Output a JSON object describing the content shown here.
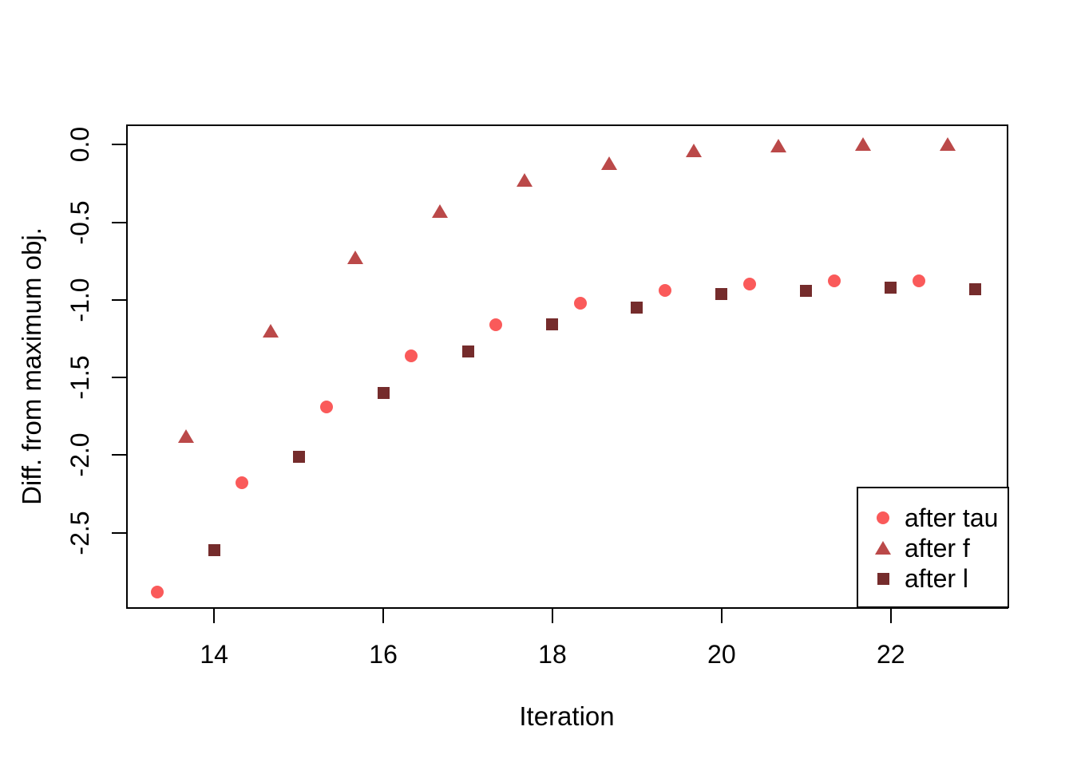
{
  "chart_data": {
    "type": "scatter",
    "title": "",
    "xlabel": "Iteration",
    "ylabel": "Diff. from maximum obj.",
    "xlim": [
      12.96,
      23.39
    ],
    "ylim": [
      -2.99,
      0.13
    ],
    "grid": false,
    "legend_position": "bottom-right",
    "x_ticks": {
      "values": [
        14,
        16,
        18,
        20,
        22
      ],
      "labels": [
        "14",
        "16",
        "18",
        "20",
        "22"
      ]
    },
    "y_ticks": {
      "values": [
        0,
        -0.5,
        -1,
        -1.5,
        -2,
        -2.5
      ],
      "labels": [
        "0.0",
        "-0.5",
        "-1.0",
        "-1.5",
        "-2.0",
        "-2.5"
      ]
    },
    "series": [
      {
        "name": "after tau",
        "marker": "circle",
        "color": "#FA5A5A",
        "x": [
          13.33,
          14.33,
          15.33,
          16.33,
          17.33,
          18.33,
          19.33,
          20.33,
          21.33,
          22.33
        ],
        "y": [
          -2.88,
          -2.18,
          -1.69,
          -1.36,
          -1.16,
          -1.02,
          -0.94,
          -0.9,
          -0.88,
          -0.88
        ]
      },
      {
        "name": "after f",
        "marker": "triangle",
        "color": "#BB4949",
        "x": [
          13.67,
          14.67,
          15.67,
          16.67,
          17.67,
          18.67,
          19.67,
          20.67,
          21.67,
          22.67
        ],
        "y": [
          -1.88,
          -1.2,
          -0.73,
          -0.43,
          -0.23,
          -0.12,
          -0.04,
          -0.01,
          0.0,
          0.0
        ]
      },
      {
        "name": "after l",
        "marker": "square",
        "color": "#752C2C",
        "x": [
          14,
          15,
          16,
          17,
          18,
          19,
          20,
          21,
          22,
          23
        ],
        "y": [
          -2.61,
          -2.01,
          -1.6,
          -1.33,
          -1.16,
          -1.05,
          -0.96,
          -0.94,
          -0.92,
          -0.93
        ]
      }
    ]
  }
}
